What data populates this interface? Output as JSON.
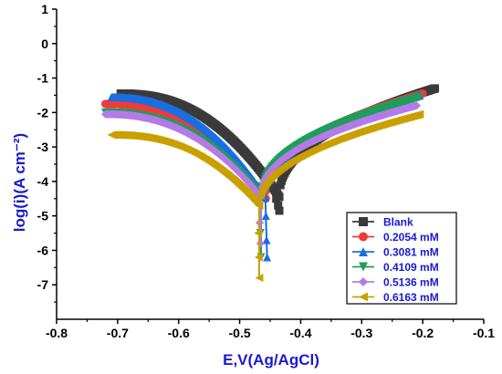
{
  "chart_data": {
    "type": "scatter",
    "xlabel": "E,V(Ag/AgCl)",
    "ylabel": "log(i)(A cm⁻²)",
    "xlim": [
      -0.8,
      -0.1
    ],
    "ylim": [
      -8,
      1
    ],
    "xticks": [
      "-0.8",
      "-0.7",
      "-0.6",
      "-0.5",
      "-0.4",
      "-0.3",
      "-0.2",
      "-0.1"
    ],
    "yticks": [
      "1",
      "0",
      "-1",
      "-2",
      "-3",
      "-4",
      "-5",
      "-6",
      "-7"
    ],
    "legend_position": "bottom-right",
    "series": [
      {
        "name": "Blank",
        "color": "#3a3a3a",
        "marker": "square",
        "ecorr": -0.435,
        "log_icorr": -4.85,
        "start": [
          -0.695,
          -1.45
        ],
        "end": [
          -0.18,
          -1.3
        ],
        "spikes": [
          [
            -0.44,
            -4.5
          ],
          [
            -0.437,
            -4.7
          ],
          [
            -0.435,
            -4.85
          ]
        ]
      },
      {
        "name": "0.2054 mM",
        "color": "#f03a3a",
        "marker": "circle",
        "ecorr": -0.46,
        "log_icorr": -4.5,
        "start": [
          -0.72,
          -1.75
        ],
        "end": [
          -0.2,
          -1.45
        ],
        "spikes": [
          [
            -0.458,
            -4.3
          ],
          [
            -0.457,
            -4.5
          ]
        ]
      },
      {
        "name": "0.3081 mM",
        "color": "#1a6fe0",
        "marker": "triangle-up",
        "ecorr": -0.458,
        "log_icorr": -6.2,
        "start": [
          -0.71,
          -1.55
        ],
        "end": [
          -0.205,
          -1.5
        ],
        "spikes": [
          [
            -0.457,
            -5.0
          ],
          [
            -0.456,
            -5.7
          ],
          [
            -0.455,
            -6.2
          ]
        ]
      },
      {
        "name": "0.4109 mM",
        "color": "#1e9e5a",
        "marker": "triangle-down",
        "ecorr": -0.465,
        "log_icorr": -6.2,
        "start": [
          -0.72,
          -2.0
        ],
        "end": [
          -0.205,
          -1.55
        ],
        "spikes": [
          [
            -0.466,
            -5.5
          ],
          [
            -0.465,
            -6.2
          ]
        ]
      },
      {
        "name": "0.5136 mM",
        "color": "#b57ae8",
        "marker": "diamond",
        "ecorr": -0.465,
        "log_icorr": -5.8,
        "start": [
          -0.72,
          -2.05
        ],
        "end": [
          -0.21,
          -1.8
        ],
        "spikes": [
          [
            -0.467,
            -5.2
          ],
          [
            -0.466,
            -5.8
          ]
        ]
      },
      {
        "name": "0.6163 mM",
        "color": "#c9a000",
        "marker": "triangle-left",
        "ecorr": -0.468,
        "log_icorr": -6.8,
        "start": [
          -0.71,
          -2.65
        ],
        "end": [
          -0.205,
          -2.05
        ],
        "spikes": [
          [
            -0.47,
            -5.5
          ],
          [
            -0.469,
            -6.2
          ],
          [
            -0.468,
            -6.8
          ]
        ]
      }
    ]
  }
}
